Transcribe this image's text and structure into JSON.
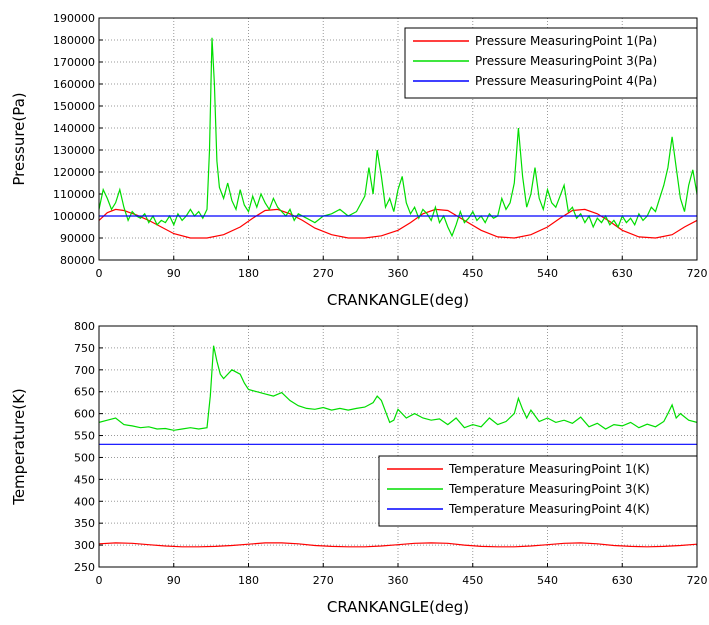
{
  "chart_data": [
    {
      "type": "line",
      "xlabel": "CRANKANGLE(deg)",
      "ylabel": "Pressure(Pa)",
      "xlim": [
        0,
        720
      ],
      "ylim": [
        80000,
        190000
      ],
      "xticks": [
        "0",
        "90",
        "180",
        "270",
        "360",
        "450",
        "540",
        "630",
        "720"
      ],
      "yticks": [
        "80000",
        "90000",
        "100000",
        "110000",
        "120000",
        "130000",
        "140000",
        "150000",
        "160000",
        "170000",
        "180000",
        "190000"
      ],
      "grid": true,
      "legend_position": "top-right",
      "series": [
        {
          "name": "Pressure MeasuringPoint 1(Pa)",
          "color": "#ff0000",
          "x": [
            0,
            10,
            20,
            30,
            45,
            60,
            75,
            90,
            110,
            130,
            150,
            170,
            185,
            200,
            215,
            230,
            245,
            260,
            280,
            300,
            320,
            340,
            360,
            375,
            390,
            405,
            420,
            440,
            460,
            480,
            500,
            520,
            540,
            555,
            570,
            585,
            600,
            615,
            630,
            650,
            670,
            690,
            705,
            720
          ],
          "y": [
            98000,
            101500,
            103000,
            102500,
            100500,
            98000,
            95000,
            92000,
            90000,
            90000,
            91500,
            95000,
            99000,
            102500,
            103000,
            101000,
            98000,
            94500,
            91500,
            90000,
            90000,
            91000,
            93500,
            97000,
            101000,
            103000,
            102500,
            98000,
            93500,
            90500,
            90000,
            91500,
            95000,
            99000,
            102500,
            103000,
            101000,
            97500,
            93500,
            90500,
            90000,
            91500,
            95000,
            98000
          ]
        },
        {
          "name": "Pressure MeasuringPoint 3(Pa)",
          "color": "#00dd00",
          "x": [
            0,
            5,
            10,
            15,
            20,
            25,
            30,
            35,
            40,
            45,
            50,
            55,
            60,
            65,
            70,
            75,
            80,
            85,
            90,
            95,
            100,
            105,
            110,
            115,
            120,
            125,
            130,
            133,
            136,
            139,
            142,
            145,
            150,
            155,
            160,
            165,
            170,
            175,
            180,
            185,
            190,
            195,
            200,
            205,
            210,
            215,
            220,
            225,
            230,
            235,
            240,
            250,
            260,
            270,
            280,
            290,
            300,
            310,
            320,
            325,
            330,
            335,
            340,
            345,
            350,
            355,
            360,
            365,
            370,
            375,
            380,
            385,
            390,
            395,
            400,
            405,
            410,
            415,
            420,
            425,
            430,
            435,
            440,
            445,
            450,
            455,
            460,
            465,
            470,
            475,
            480,
            485,
            490,
            495,
            500,
            505,
            510,
            515,
            520,
            525,
            530,
            535,
            540,
            545,
            550,
            555,
            560,
            565,
            570,
            575,
            580,
            585,
            590,
            595,
            600,
            605,
            610,
            615,
            620,
            625,
            630,
            635,
            640,
            645,
            650,
            655,
            660,
            665,
            670,
            675,
            680,
            685,
            690,
            695,
            700,
            705,
            710,
            715,
            720
          ],
          "y": [
            103000,
            112000,
            108000,
            103000,
            106000,
            112000,
            104000,
            98000,
            102000,
            100000,
            99000,
            101000,
            97000,
            100000,
            96000,
            98000,
            97000,
            100000,
            96000,
            101000,
            98000,
            100000,
            103000,
            100000,
            102000,
            99000,
            103000,
            130000,
            181000,
            160000,
            125000,
            113000,
            108000,
            115000,
            107000,
            103000,
            112000,
            105000,
            102000,
            109000,
            104000,
            110000,
            106000,
            103000,
            108000,
            104000,
            102000,
            100000,
            103000,
            98000,
            101000,
            99000,
            97000,
            100000,
            101000,
            103000,
            100000,
            102000,
            109000,
            122000,
            110000,
            130000,
            118000,
            104000,
            108000,
            102000,
            112000,
            118000,
            106000,
            101000,
            104000,
            99000,
            103000,
            101000,
            98000,
            104000,
            97000,
            100000,
            95000,
            91000,
            96000,
            102000,
            97000,
            99000,
            102000,
            98000,
            100000,
            97000,
            101000,
            99000,
            100000,
            108000,
            103000,
            106000,
            115000,
            140000,
            118000,
            104000,
            110000,
            122000,
            108000,
            103000,
            112000,
            106000,
            104000,
            109000,
            114000,
            102000,
            104000,
            99000,
            101000,
            97000,
            100000,
            95000,
            99000,
            97000,
            100000,
            96000,
            98000,
            95000,
            100000,
            97000,
            99000,
            96000,
            101000,
            98000,
            100000,
            104000,
            102000,
            108000,
            114000,
            122000,
            136000,
            122000,
            108000,
            102000,
            114000,
            121000,
            110000
          ]
        },
        {
          "name": "Pressure MeasuringPoint 4(Pa)",
          "color": "#0000ff",
          "x": [
            0,
            720
          ],
          "y": [
            100000,
            100000
          ]
        }
      ]
    },
    {
      "type": "line",
      "xlabel": "CRANKANGLE(deg)",
      "ylabel": "Temperature(K)",
      "xlim": [
        0,
        720
      ],
      "ylim": [
        250,
        800
      ],
      "xticks": [
        "0",
        "90",
        "180",
        "270",
        "360",
        "450",
        "540",
        "630",
        "720"
      ],
      "yticks": [
        "250",
        "300",
        "350",
        "400",
        "450",
        "500",
        "550",
        "600",
        "650",
        "700",
        "750",
        "800"
      ],
      "grid": true,
      "legend_position": "center-right",
      "series": [
        {
          "name": "Temperature MeasuringPoint 1(K)",
          "color": "#ff0000",
          "x": [
            0,
            20,
            40,
            60,
            80,
            100,
            120,
            140,
            160,
            180,
            200,
            220,
            240,
            260,
            280,
            300,
            320,
            340,
            360,
            380,
            400,
            420,
            440,
            460,
            480,
            500,
            520,
            540,
            560,
            580,
            600,
            620,
            640,
            660,
            680,
            700,
            720
          ],
          "y": [
            303,
            305,
            304,
            301,
            298,
            296,
            296,
            297,
            299,
            302,
            305,
            305,
            303,
            299,
            297,
            296,
            296,
            298,
            301,
            304,
            305,
            304,
            300,
            297,
            296,
            296,
            298,
            301,
            304,
            305,
            303,
            299,
            297,
            296,
            297,
            299,
            302
          ]
        },
        {
          "name": "Temperature MeasuringPoint 3(K)",
          "color": "#00dd00",
          "x": [
            0,
            10,
            20,
            30,
            40,
            50,
            60,
            70,
            80,
            90,
            100,
            110,
            120,
            130,
            134,
            138,
            142,
            146,
            150,
            160,
            170,
            175,
            180,
            190,
            200,
            210,
            220,
            230,
            240,
            250,
            260,
            270,
            280,
            290,
            300,
            310,
            320,
            330,
            335,
            340,
            345,
            350,
            355,
            360,
            370,
            380,
            390,
            400,
            410,
            420,
            430,
            440,
            450,
            460,
            470,
            480,
            490,
            500,
            505,
            510,
            515,
            520,
            530,
            540,
            550,
            560,
            570,
            580,
            590,
            600,
            610,
            620,
            630,
            640,
            650,
            660,
            670,
            680,
            685,
            690,
            695,
            700,
            710,
            720
          ],
          "y": [
            580,
            585,
            590,
            575,
            572,
            568,
            570,
            565,
            566,
            562,
            565,
            568,
            565,
            568,
            640,
            755,
            720,
            690,
            680,
            700,
            690,
            670,
            655,
            650,
            645,
            640,
            648,
            630,
            618,
            612,
            610,
            614,
            608,
            612,
            608,
            612,
            615,
            625,
            640,
            630,
            605,
            580,
            585,
            610,
            590,
            600,
            590,
            585,
            588,
            575,
            590,
            568,
            575,
            570,
            590,
            575,
            582,
            600,
            635,
            610,
            590,
            608,
            582,
            590,
            580,
            585,
            578,
            592,
            570,
            578,
            565,
            575,
            572,
            580,
            568,
            576,
            570,
            582,
            600,
            620,
            590,
            600,
            585,
            580
          ]
        },
        {
          "name": "Temperature MeasuringPoint 4(K)",
          "color": "#0000ff",
          "x": [
            0,
            720
          ],
          "y": [
            530,
            530
          ]
        }
      ]
    }
  ]
}
